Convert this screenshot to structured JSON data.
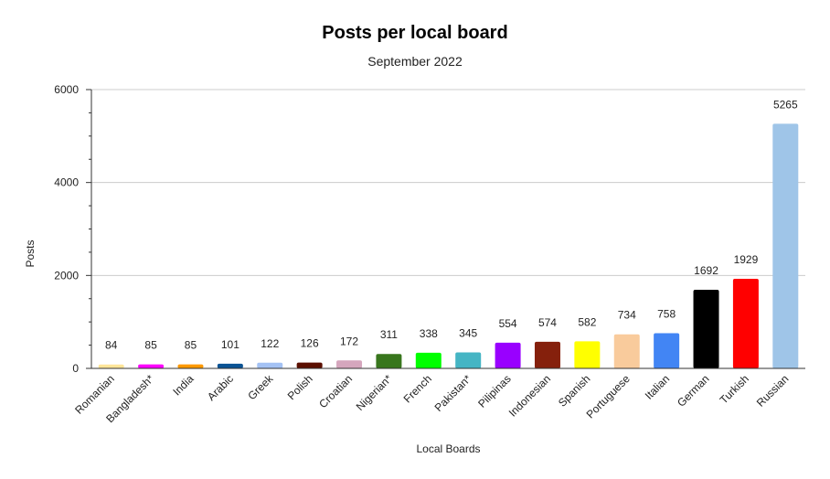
{
  "chart_data": {
    "type": "bar",
    "title": "Posts per local board",
    "subtitle": "September 2022",
    "xlabel": "Local Boards",
    "ylabel": "Posts",
    "ylim": [
      0,
      6000
    ],
    "yticks": [
      0,
      2000,
      4000,
      6000
    ],
    "grid": true,
    "legend": "none",
    "categories": [
      "Romanian",
      "Bangladesh*",
      "India",
      "Arabic",
      "Greek",
      "Polish",
      "Croatian",
      "Nigerian*",
      "French",
      "Pakistan*",
      "Pilipinas",
      "Indonesian",
      "Spanish",
      "Portuguese",
      "Italian",
      "German",
      "Turkish",
      "Russian"
    ],
    "values": [
      84,
      85,
      85,
      101,
      122,
      126,
      172,
      311,
      338,
      345,
      554,
      574,
      582,
      734,
      758,
      1692,
      1929,
      5265
    ],
    "colors": [
      "#ffe599",
      "#ff00ff",
      "#ff9900",
      "#0b5394",
      "#a4c2f4",
      "#5b0f00",
      "#d5a6bd",
      "#38761d",
      "#00ff00",
      "#45b5c4",
      "#9900ff",
      "#85200c",
      "#ffff00",
      "#f9cb9c",
      "#4285f4",
      "#000000",
      "#ff0000",
      "#9fc5e8"
    ]
  }
}
